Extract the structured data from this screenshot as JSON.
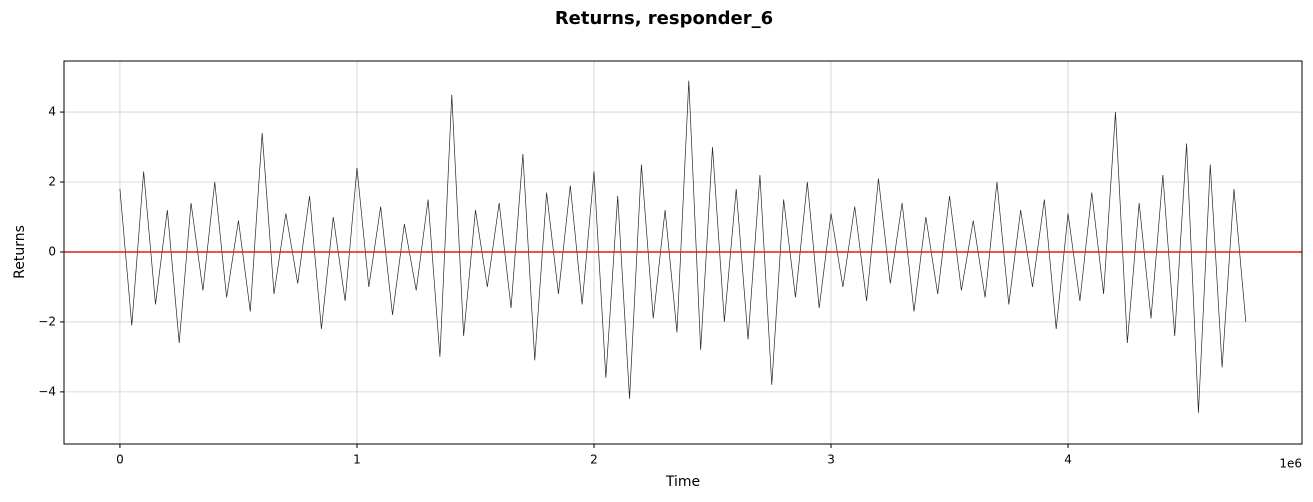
{
  "chart_data": {
    "type": "line",
    "title": "Returns, responder_6",
    "x_label": "Time",
    "y_label": "Returns",
    "x_offset_label": "1e6",
    "x": [
      0,
      50000,
      100000,
      150000,
      200000,
      250000,
      300000,
      350000,
      400000,
      450000,
      500000,
      550000,
      600000,
      650000,
      700000,
      750000,
      800000,
      850000,
      900000,
      950000,
      1000000,
      1050000,
      1100000,
      1150000,
      1200000,
      1250000,
      1300000,
      1350000,
      1400000,
      1450000,
      1500000,
      1550000,
      1600000,
      1650000,
      1700000,
      1750000,
      1800000,
      1850000,
      1900000,
      1950000,
      2000000,
      2050000,
      2100000,
      2150000,
      2200000,
      2250000,
      2300000,
      2350000,
      2400000,
      2450000,
      2500000,
      2550000,
      2600000,
      2650000,
      2700000,
      2750000,
      2800000,
      2850000,
      2900000,
      2950000,
      3000000,
      3050000,
      3100000,
      3150000,
      3200000,
      3250000,
      3300000,
      3350000,
      3400000,
      3450000,
      3500000,
      3550000,
      3600000,
      3650000,
      3700000,
      3750000,
      3800000,
      3850000,
      3900000,
      3950000,
      4000000,
      4050000,
      4100000,
      4150000,
      4200000,
      4250000,
      4300000,
      4350000,
      4400000,
      4450000,
      4500000,
      4550000,
      4600000,
      4650000,
      4700000,
      4750000
    ],
    "series": [
      {
        "name": "responder_6",
        "color": "#000000",
        "values": [
          1.8,
          -2.1,
          2.3,
          -1.5,
          1.2,
          -2.6,
          1.4,
          -1.1,
          2.0,
          -1.3,
          0.9,
          -1.7,
          3.4,
          -1.2,
          1.1,
          -0.9,
          1.6,
          -2.2,
          1.0,
          -1.4,
          2.4,
          -1.0,
          1.3,
          -1.8,
          0.8,
          -1.1,
          1.5,
          -3.0,
          4.5,
          -2.4,
          1.2,
          -1.0,
          1.4,
          -1.6,
          2.8,
          -3.1,
          1.7,
          -1.2,
          1.9,
          -1.5,
          2.3,
          -3.6,
          1.6,
          -4.2,
          2.5,
          -1.9,
          1.2,
          -2.3,
          4.9,
          -2.8,
          3.0,
          -2.0,
          1.8,
          -2.5,
          2.2,
          -3.8,
          1.5,
          -1.3,
          2.0,
          -1.6,
          1.1,
          -1.0,
          1.3,
          -1.4,
          2.1,
          -0.9,
          1.4,
          -1.7,
          1.0,
          -1.2,
          1.6,
          -1.1,
          0.9,
          -1.3,
          2.0,
          -1.5,
          1.2,
          -1.0,
          1.5,
          -2.2,
          1.1,
          -1.4,
          1.7,
          -1.2,
          4.0,
          -2.6,
          1.4,
          -1.9,
          2.2,
          -2.4,
          3.1,
          -4.6,
          2.5,
          -3.3,
          1.8,
          -2.0
        ]
      }
    ],
    "hline": {
      "value": 0,
      "color": "#e41a1c"
    },
    "xlim": [
      -236000,
      4987000
    ],
    "xticks": [
      0,
      {
        "value": 1000000,
        "label": "1"
      },
      {
        "value": 2000000,
        "label": "2"
      },
      {
        "value": 3000000,
        "label": "3"
      },
      {
        "value": 4000000,
        "label": "4"
      }
    ],
    "ylim": [
      -5.49,
      5.46
    ],
    "yticks": [
      {
        "value": -4,
        "label": "−4"
      },
      {
        "value": -2,
        "label": "−2"
      },
      0,
      2,
      4
    ],
    "grid": true
  }
}
